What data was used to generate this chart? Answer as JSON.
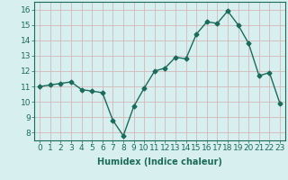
{
  "x": [
    0,
    1,
    2,
    3,
    4,
    5,
    6,
    7,
    8,
    9,
    10,
    11,
    12,
    13,
    14,
    15,
    16,
    17,
    18,
    19,
    20,
    21,
    22,
    23
  ],
  "y": [
    11.0,
    11.1,
    11.2,
    11.3,
    10.8,
    10.7,
    10.6,
    8.8,
    7.8,
    9.7,
    10.9,
    12.0,
    12.2,
    12.9,
    12.8,
    14.4,
    15.2,
    15.1,
    15.9,
    15.0,
    13.8,
    11.7,
    11.9,
    9.9
  ],
  "line_color": "#1a6b5a",
  "marker": "D",
  "markersize": 2.5,
  "linewidth": 1.0,
  "bg_color": "#d8eff0",
  "grid_color": "#c0dede",
  "xlabel": "Humidex (Indice chaleur)",
  "ylabel": "",
  "xlim": [
    -0.5,
    23.5
  ],
  "ylim": [
    7.5,
    16.5
  ],
  "yticks": [
    8,
    9,
    10,
    11,
    12,
    13,
    14,
    15,
    16
  ],
  "xticks": [
    0,
    1,
    2,
    3,
    4,
    5,
    6,
    7,
    8,
    9,
    10,
    11,
    12,
    13,
    14,
    15,
    16,
    17,
    18,
    19,
    20,
    21,
    22,
    23
  ],
  "xlabel_fontsize": 7,
  "tick_fontsize": 6.5
}
